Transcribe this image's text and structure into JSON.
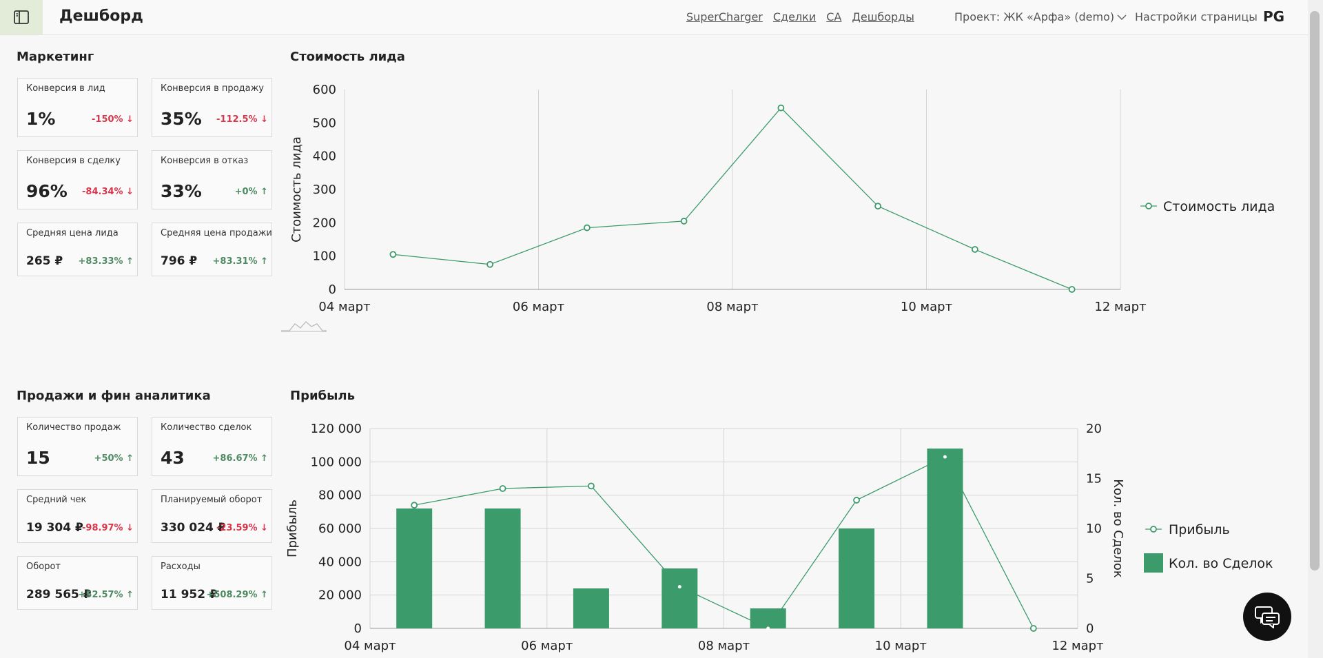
{
  "header": {
    "title": "Дешборд",
    "nav": [
      "SuperCharger",
      "Сделки",
      "CA",
      "Дешборды"
    ],
    "project": "Проект: ЖК «Арфа» (demo)",
    "settings": "Настройки страницы",
    "user": "PG"
  },
  "icons": {
    "menu": "sidebar-toggle-icon",
    "project_dropdown": "chevron-down-icon",
    "chat": "chat-icon",
    "chart_placeholder": "mini-area-chart-icon"
  },
  "colors": {
    "accent": "#3b9b6a",
    "negative": "#d9364c",
    "positive": "#4e8a62"
  },
  "marketing": {
    "title": "Маркетинг",
    "cards": [
      {
        "label": "Конверсия в лид",
        "value": "1%",
        "delta": "-150%",
        "dir": "down"
      },
      {
        "label": "Конверсия в продажу",
        "value": "35%",
        "delta": "-112.5%",
        "dir": "down"
      },
      {
        "label": "Конверсия в сделку",
        "value": "96%",
        "delta": "-84.34%",
        "dir": "down"
      },
      {
        "label": "Конверсия в отказ",
        "value": "33%",
        "delta": "+0%",
        "dir": "up"
      },
      {
        "label": "Средняя цена лида",
        "value": "265 ₽",
        "delta": "+83.33%",
        "dir": "up"
      },
      {
        "label": "Средняя цена продажи",
        "value": "796 ₽",
        "delta": "+83.31%",
        "dir": "up"
      }
    ]
  },
  "sales": {
    "title": "Продажи и фин аналитика",
    "cards": [
      {
        "label": "Количество продаж",
        "value": "15",
        "delta": "+50%",
        "dir": "up"
      },
      {
        "label": "Количество сделок",
        "value": "43",
        "delta": "+86.67%",
        "dir": "up"
      },
      {
        "label": "Средний чек",
        "value": "19 304 ₽",
        "delta": "-98.97%",
        "dir": "down"
      },
      {
        "label": "Планируемый оборот",
        "value": "330 024 ₽",
        "delta": "-23.59%",
        "dir": "down"
      },
      {
        "label": "Оборот",
        "value": "289 565 ₽",
        "delta": "+52.57%",
        "dir": "up"
      },
      {
        "label": "Расходы",
        "value": "11 952 ₽",
        "delta": "+508.29%",
        "dir": "up"
      }
    ]
  },
  "chart_data": [
    {
      "type": "line",
      "title": "Стоимость лида",
      "ylabel": "Стоимость лида",
      "xlabel": "",
      "x_ticks": [
        "04 март",
        "06 март",
        "08 март",
        "10 март",
        "12 март"
      ],
      "x": [
        4.5,
        5.5,
        6.5,
        7.5,
        8.5,
        9.5,
        10.5,
        11.5
      ],
      "series": [
        {
          "name": "Стоимость лида",
          "values": [
            105,
            75,
            185,
            205,
            545,
            250,
            120,
            0
          ]
        }
      ],
      "xlim": [
        4,
        12
      ],
      "ylim": [
        0,
        600
      ],
      "y_ticks": [
        0,
        100,
        200,
        300,
        400,
        500,
        600
      ],
      "grid": "vertical",
      "legend": "right"
    },
    {
      "type": "bar",
      "title": "Прибыль",
      "ylabel": "Прибыль",
      "y2label": "Кол. во Сделок",
      "x_ticks": [
        "04 март",
        "06 март",
        "08 март",
        "10 март",
        "12 март"
      ],
      "x": [
        4.5,
        5.5,
        6.5,
        7.5,
        8.5,
        9.5,
        10.5,
        11.5
      ],
      "xlim": [
        4,
        12
      ],
      "ylim": [
        0,
        120000
      ],
      "y_ticks": [
        "0",
        "20 000",
        "40 000",
        "60 000",
        "80 000",
        "100 000",
        "120 000"
      ],
      "y2lim": [
        0,
        20
      ],
      "y2_ticks": [
        0,
        5,
        10,
        15,
        20
      ],
      "series": [
        {
          "name": "Прибыль",
          "type": "line",
          "axis": "left",
          "values": [
            74000,
            84000,
            85500,
            25000,
            0,
            77000,
            103000,
            0
          ]
        },
        {
          "name": "Кол. во Сделок",
          "type": "bar",
          "axis": "right",
          "values": [
            12,
            12,
            4,
            6,
            2,
            10,
            18,
            0
          ]
        }
      ],
      "grid": "both",
      "legend": "right"
    }
  ]
}
